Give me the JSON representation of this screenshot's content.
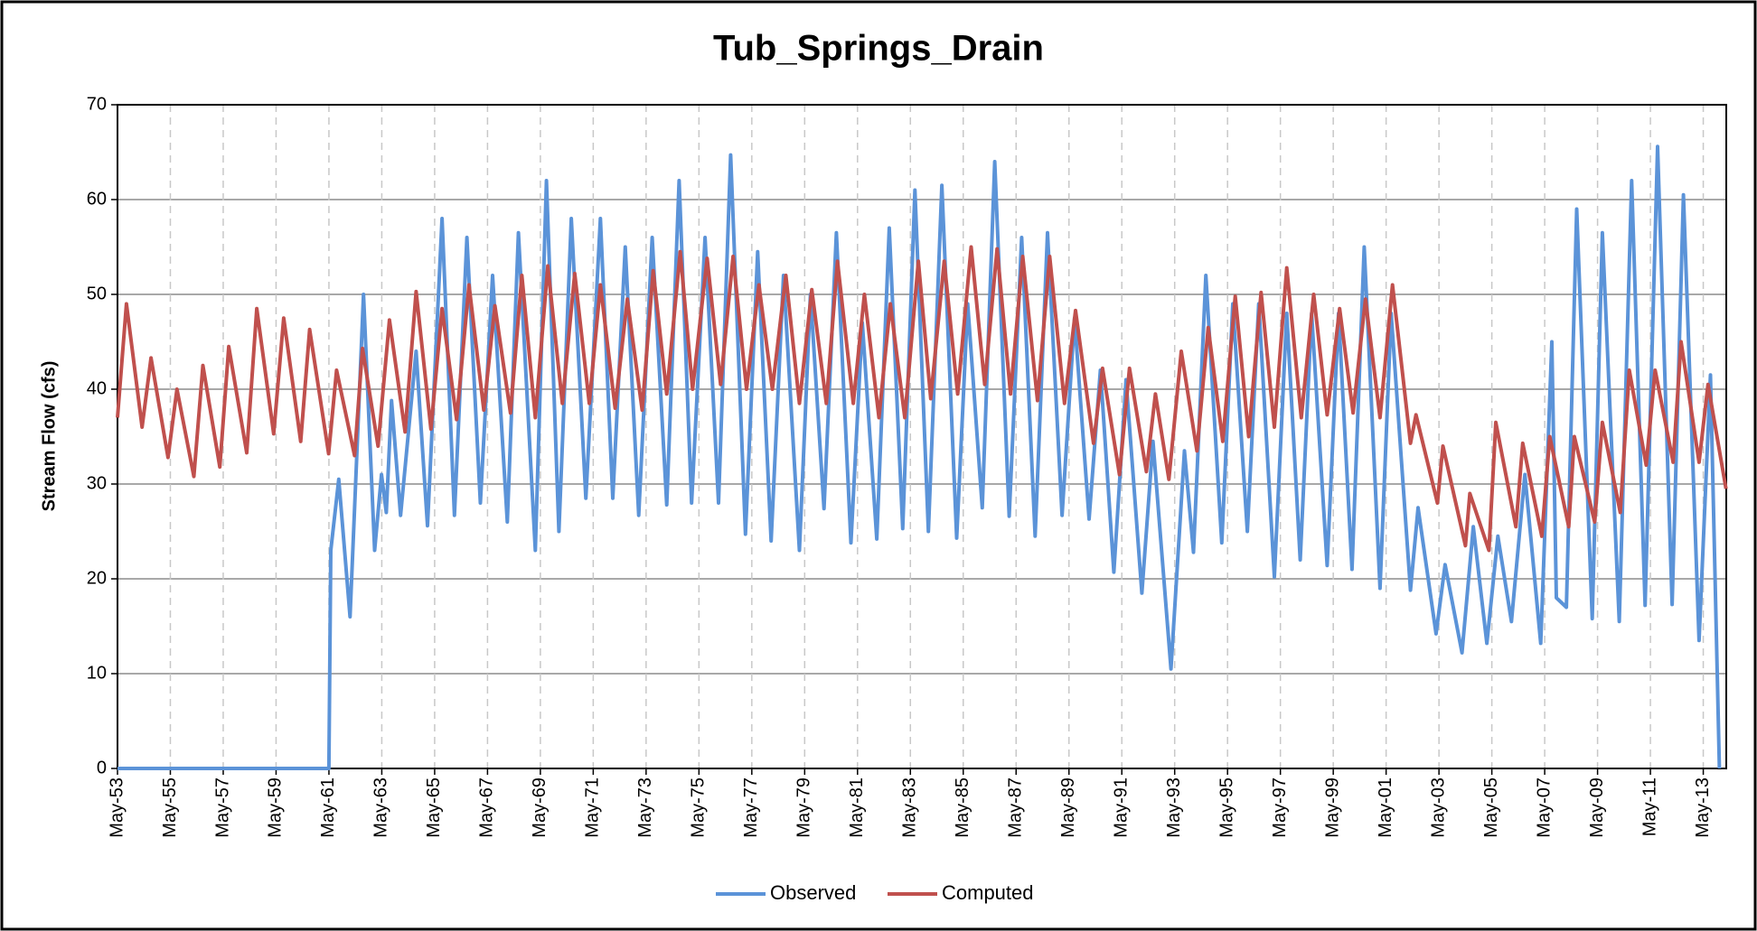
{
  "chart_data": {
    "type": "line",
    "title": "Tub_Springs_Drain",
    "y_label": "Stream Flow (cfs)",
    "xlim": [
      1953.33,
      2014.2
    ],
    "ylim": [
      0,
      70
    ],
    "yticks": [
      0,
      10,
      20,
      30,
      40,
      50,
      60,
      70
    ],
    "xticks": [
      {
        "value": 1953.33,
        "label": "May-53"
      },
      {
        "value": 1955.33,
        "label": "May-55"
      },
      {
        "value": 1957.33,
        "label": "May-57"
      },
      {
        "value": 1959.33,
        "label": "May-59"
      },
      {
        "value": 1961.33,
        "label": "May-61"
      },
      {
        "value": 1963.33,
        "label": "May-63"
      },
      {
        "value": 1965.33,
        "label": "May-65"
      },
      {
        "value": 1967.33,
        "label": "May-67"
      },
      {
        "value": 1969.33,
        "label": "May-69"
      },
      {
        "value": 1971.33,
        "label": "May-71"
      },
      {
        "value": 1973.33,
        "label": "May-73"
      },
      {
        "value": 1975.33,
        "label": "May-75"
      },
      {
        "value": 1977.33,
        "label": "May-77"
      },
      {
        "value": 1979.33,
        "label": "May-79"
      },
      {
        "value": 1981.33,
        "label": "May-81"
      },
      {
        "value": 1983.33,
        "label": "May-83"
      },
      {
        "value": 1985.33,
        "label": "May-85"
      },
      {
        "value": 1987.33,
        "label": "May-87"
      },
      {
        "value": 1989.33,
        "label": "May-89"
      },
      {
        "value": 1991.33,
        "label": "May-91"
      },
      {
        "value": 1993.33,
        "label": "May-93"
      },
      {
        "value": 1995.33,
        "label": "May-95"
      },
      {
        "value": 1997.33,
        "label": "May-97"
      },
      {
        "value": 1999.33,
        "label": "May-99"
      },
      {
        "value": 2001.33,
        "label": "May-01"
      },
      {
        "value": 2003.33,
        "label": "May-03"
      },
      {
        "value": 2005.33,
        "label": "May-05"
      },
      {
        "value": 2007.33,
        "label": "May-07"
      },
      {
        "value": 2009.33,
        "label": "May-09"
      },
      {
        "value": 2011.33,
        "label": "May-11"
      },
      {
        "value": 2013.33,
        "label": "May-13"
      }
    ],
    "grid": true,
    "legend": "bottom",
    "series": [
      {
        "name": "Observed",
        "color": "#5b93d8",
        "x": [
          1953.33,
          1961.33,
          1961.4,
          1961.7,
          1962.13,
          1962.64,
          1963.06,
          1963.32,
          1963.5,
          1963.7,
          1964.04,
          1964.63,
          1965.06,
          1965.61,
          1966.08,
          1966.55,
          1967.06,
          1967.52,
          1968.08,
          1968.5,
          1969.14,
          1969.56,
          1970.03,
          1970.5,
          1971.05,
          1971.6,
          1972.07,
          1972.54,
          1973.05,
          1973.56,
          1974.11,
          1974.58,
          1975.05,
          1975.56,
          1976.07,
          1976.53,
          1977.09,
          1977.55,
          1978.06,
          1978.53,
          1979.13,
          1979.55,
          1980.06,
          1980.53,
          1981.08,
          1981.51,
          1982.06,
          1982.53,
          1983.04,
          1983.5,
          1984.01,
          1984.52,
          1985.08,
          1985.5,
          1986.05,
          1986.52,
          1987.07,
          1987.54,
          1988.05,
          1988.52,
          1989.07,
          1989.54,
          1990.09,
          1990.52,
          1991.03,
          1991.49,
          1992.09,
          1992.51,
          1993.19,
          1993.7,
          1994.04,
          1994.51,
          1995.11,
          1995.53,
          1996.08,
          1996.51,
          1997.1,
          1997.57,
          1998.08,
          1998.51,
          1999.1,
          1999.53,
          2000.04,
          2000.5,
          2001.1,
          2001.52,
          2002.25,
          2002.54,
          2003.22,
          2003.56,
          2004.2,
          2004.63,
          2005.14,
          2005.56,
          2006.07,
          2006.58,
          2007.18,
          2007.6,
          2007.77,
          2008.15,
          2008.54,
          2009.13,
          2009.51,
          2010.15,
          2010.62,
          2011.13,
          2011.6,
          2012.15,
          2012.58,
          2013.17,
          2013.6,
          2013.94
        ],
        "values": [
          0,
          0,
          23,
          30.5,
          16,
          50,
          23,
          31,
          27,
          38.8,
          26.7,
          44,
          25.6,
          58,
          26.7,
          56,
          28,
          52,
          26,
          56.5,
          23,
          62,
          25,
          58,
          28.5,
          58,
          28.5,
          55,
          26.7,
          56,
          27.8,
          62,
          28,
          56,
          28,
          64.7,
          24.7,
          54.5,
          24,
          52,
          23,
          50,
          27.4,
          56.5,
          23.8,
          47,
          24.2,
          57,
          25.3,
          61,
          25,
          61.5,
          24.3,
          49,
          27.5,
          64,
          26.6,
          56,
          24.5,
          56.5,
          26.7,
          47.5,
          26.3,
          42,
          20.7,
          41,
          18.5,
          34.5,
          10.5,
          33.5,
          22.8,
          52,
          23.8,
          49,
          25,
          49,
          20.2,
          48,
          22,
          48,
          21.4,
          48,
          21,
          55,
          19,
          48,
          18.8,
          27.5,
          14.2,
          21.5,
          12.2,
          25.5,
          13.2,
          24.5,
          15.5,
          31,
          13.2,
          45,
          18,
          17,
          59,
          15.8,
          56.5,
          15.5,
          62,
          17.2,
          65.6,
          17.3,
          60.5,
          13.5,
          41.5,
          0
        ]
      },
      {
        "name": "Computed",
        "color": "#c0504d",
        "x": [
          1953.33,
          1953.67,
          1954.26,
          1954.6,
          1955.24,
          1955.58,
          1956.22,
          1956.56,
          1957.2,
          1957.54,
          1958.22,
          1958.6,
          1959.24,
          1959.62,
          1960.26,
          1960.6,
          1961.32,
          1961.62,
          1962.3,
          1962.6,
          1963.19,
          1963.62,
          1964.21,
          1964.63,
          1965.19,
          1965.61,
          1966.16,
          1966.63,
          1967.19,
          1967.61,
          1968.2,
          1968.63,
          1969.14,
          1969.61,
          1970.16,
          1970.63,
          1971.18,
          1971.6,
          1972.16,
          1972.62,
          1973.18,
          1973.6,
          1974.11,
          1974.62,
          1975.09,
          1975.64,
          1976.15,
          1976.62,
          1977.13,
          1977.6,
          1978.11,
          1978.62,
          1979.13,
          1979.6,
          1980.15,
          1980.57,
          1981.17,
          1981.59,
          1982.14,
          1982.57,
          1983.12,
          1983.63,
          1984.1,
          1984.61,
          1985.12,
          1985.63,
          1986.14,
          1986.61,
          1987.12,
          1987.58,
          1988.14,
          1988.6,
          1989.16,
          1989.58,
          1990.26,
          1990.6,
          1991.24,
          1991.62,
          1992.26,
          1992.6,
          1993.11,
          1993.58,
          1994.17,
          1994.6,
          1995.15,
          1995.62,
          1996.13,
          1996.6,
          1997.1,
          1997.57,
          1998.12,
          1998.59,
          1999.1,
          1999.57,
          2000.08,
          2000.55,
          2001.1,
          2001.57,
          2002.25,
          2002.46,
          2003.27,
          2003.48,
          2004.33,
          2004.5,
          2005.22,
          2005.48,
          2006.24,
          2006.5,
          2007.22,
          2007.52,
          2008.24,
          2008.45,
          2009.22,
          2009.51,
          2010.19,
          2010.53,
          2011.17,
          2011.51,
          2012.19,
          2012.49,
          2013.17,
          2013.51,
          2014.19
        ],
        "values": [
          37,
          49,
          36,
          43.3,
          32.8,
          40,
          30.8,
          42.5,
          31.8,
          44.5,
          33.3,
          48.5,
          35.3,
          47.5,
          34.5,
          46.3,
          33.2,
          42,
          33,
          44.3,
          34,
          47.3,
          35.5,
          50.3,
          35.8,
          48.5,
          36.8,
          51,
          37.8,
          48.8,
          37.5,
          52,
          37,
          53,
          38.5,
          52.2,
          38.5,
          51,
          38,
          49.5,
          37.8,
          52.5,
          39.5,
          54.5,
          40,
          53.8,
          40.5,
          54,
          40,
          51,
          40,
          52,
          38.5,
          50.5,
          38.5,
          53.5,
          38.5,
          50,
          37,
          49,
          37,
          53.5,
          39,
          53.5,
          39.5,
          55,
          40.5,
          54.8,
          39.5,
          54,
          38.8,
          54,
          38.5,
          48.3,
          34.3,
          42.2,
          31,
          42.2,
          31.3,
          39.5,
          30.5,
          44,
          33.5,
          46.5,
          34.5,
          49.8,
          35,
          50.2,
          36,
          52.8,
          37,
          50,
          37.3,
          48.5,
          37.5,
          49.5,
          37,
          51,
          34.3,
          37.3,
          28,
          34,
          23.5,
          29,
          23,
          36.5,
          25.5,
          34.3,
          24.5,
          35,
          25.5,
          35,
          26,
          36.5,
          27,
          42,
          32,
          42,
          32.3,
          45,
          32.3,
          40.5,
          29.5
        ]
      }
    ]
  }
}
